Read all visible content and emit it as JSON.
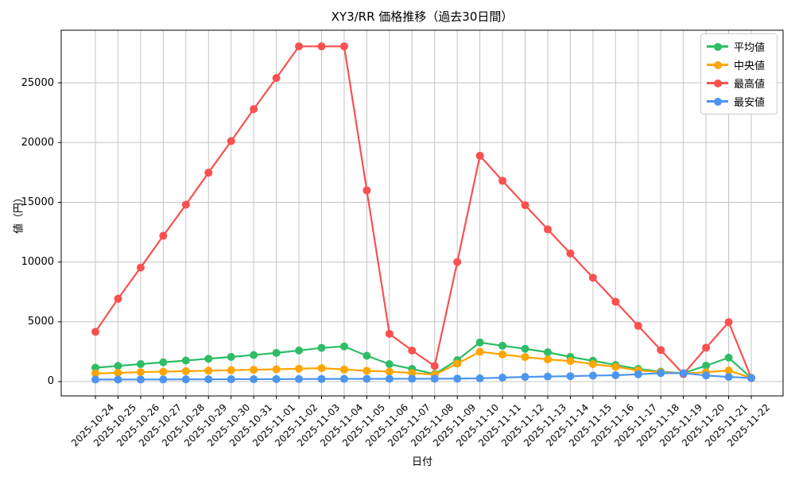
{
  "chart_data": {
    "type": "line",
    "title": "XY3/RR 価格推移（過去30日間）",
    "xlabel": "日付",
    "ylabel": "値（円）",
    "grid": true,
    "legend_position": "upper right",
    "ylim": [
      -1200,
      29400
    ],
    "yticks": [
      0,
      5000,
      10000,
      15000,
      20000,
      25000
    ],
    "categories": [
      "2025-10-24",
      "2025-10-25",
      "2025-10-26",
      "2025-10-27",
      "2025-10-28",
      "2025-10-29",
      "2025-10-30",
      "2025-10-31",
      "2025-11-01",
      "2025-11-02",
      "2025-11-03",
      "2025-11-04",
      "2025-11-05",
      "2025-11-06",
      "2025-11-07",
      "2025-11-08",
      "2025-11-09",
      "2025-11-10",
      "2025-11-11",
      "2025-11-12",
      "2025-11-13",
      "2025-11-14",
      "2025-11-15",
      "2025-11-16",
      "2025-11-17",
      "2025-11-18",
      "2025-11-19",
      "2025-11-20",
      "2025-11-21",
      "2025-11-22"
    ],
    "series": [
      {
        "key": "mean",
        "name": "平均値",
        "color": "#2EBD66",
        "values": [
          1160,
          1310,
          1460,
          1610,
          1760,
          1910,
          2060,
          2220,
          2400,
          2600,
          2820,
          2940,
          2160,
          1460,
          1060,
          630,
          1790,
          3270,
          3000,
          2740,
          2450,
          2060,
          1740,
          1390,
          1060,
          830,
          700,
          1330,
          2000,
          300
        ]
      },
      {
        "key": "median",
        "name": "中央値",
        "color": "#FFA502",
        "values": [
          680,
          730,
          790,
          830,
          870,
          910,
          950,
          990,
          1030,
          1080,
          1120,
          1010,
          900,
          830,
          720,
          570,
          1500,
          2490,
          2270,
          2050,
          1850,
          1720,
          1460,
          1230,
          940,
          790,
          680,
          780,
          930,
          300
        ]
      },
      {
        "key": "max",
        "name": "最高値",
        "color": "#FA5050",
        "values": [
          4160,
          6930,
          9540,
          12200,
          14800,
          17480,
          20120,
          22800,
          25400,
          28050,
          28050,
          28050,
          16000,
          4000,
          2600,
          1300,
          10000,
          18900,
          16800,
          14760,
          12740,
          10720,
          8690,
          6680,
          4660,
          2640,
          620,
          2830,
          4970,
          300
        ]
      },
      {
        "key": "min",
        "name": "最安値",
        "color": "#4D96F0",
        "values": [
          170,
          170,
          175,
          180,
          185,
          190,
          195,
          200,
          205,
          210,
          220,
          225,
          230,
          230,
          235,
          240,
          250,
          270,
          330,
          390,
          420,
          450,
          500,
          530,
          610,
          710,
          700,
          510,
          390,
          300
        ]
      }
    ],
    "grid_color": "#c4c4c4",
    "spine_color": "#000000"
  }
}
